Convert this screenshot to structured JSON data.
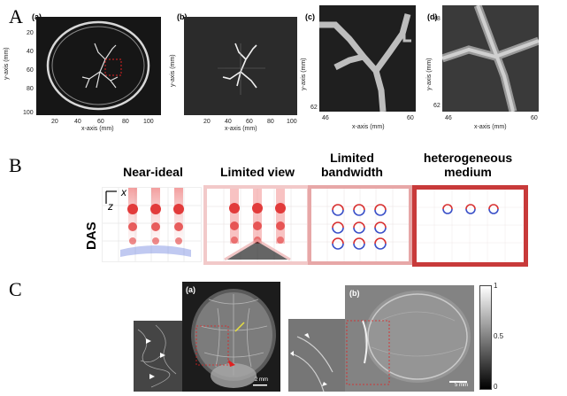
{
  "sections": {
    "a": {
      "letter": "A",
      "panels": [
        {
          "label": "(a)",
          "yticks": [
            "20",
            "40",
            "60",
            "80",
            "100"
          ],
          "xticks": [
            "20",
            "40",
            "60",
            "80",
            "100"
          ],
          "xlabel": "x-axis (mm)",
          "ylabel": "y-axis (mm)"
        },
        {
          "label": "(b)",
          "yticks": [],
          "xticks": [
            "20",
            "40",
            "60",
            "80",
            "100"
          ],
          "xlabel": "x-axis (mm)",
          "ylabel": "y-axis (mm)"
        },
        {
          "label": "(c)",
          "yticks": [
            "48",
            "62"
          ],
          "xticks": [
            "46",
            "60"
          ],
          "xlabel": "x-axis (mm)",
          "ylabel": "y-axis (mm)"
        },
        {
          "label": "(d)",
          "yticks": [
            "48",
            "62"
          ],
          "xticks": [
            "46",
            "60"
          ],
          "xlabel": "x-axis (mm)",
          "ylabel": "y-axis (mm)"
        }
      ]
    },
    "b": {
      "letter": "B",
      "row_label": "DAS",
      "axis_x": "x",
      "axis_z": "z",
      "columns": [
        {
          "title": "Near-ideal",
          "frame": "#ffffff"
        },
        {
          "title": "Limited view",
          "frame": "#f2c9c9"
        },
        {
          "title": "Limited bandwidth",
          "frame": "#e7a7a7"
        },
        {
          "title": "heterogeneous medium",
          "frame": "#c83a3a"
        }
      ]
    },
    "c": {
      "letter": "C",
      "panels": [
        {
          "label": "(a)",
          "scale": "2 mm"
        },
        {
          "label": "(b)",
          "scale": "5 mm"
        }
      ],
      "colorbar": {
        "max": "1",
        "mid": "0.5",
        "min": "0"
      }
    }
  }
}
